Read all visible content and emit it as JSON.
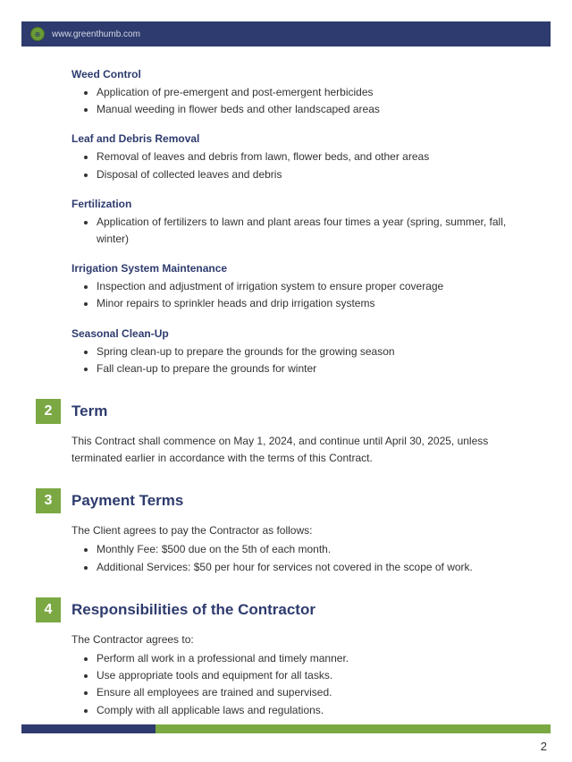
{
  "header": {
    "url": "www.greenthumb.com"
  },
  "subSections": [
    {
      "heading": "Weed Control",
      "items": [
        "Application of pre-emergent and post-emergent herbicides",
        "Manual weeding in flower beds and other landscaped areas"
      ]
    },
    {
      "heading": "Leaf and Debris Removal",
      "items": [
        "Removal of leaves and debris from lawn, flower beds, and other areas",
        "Disposal of collected leaves and debris"
      ]
    },
    {
      "heading": "Fertilization",
      "items": [
        "Application of fertilizers to lawn and plant areas four times a year (spring, summer, fall, winter)"
      ]
    },
    {
      "heading": "Irrigation System Maintenance",
      "items": [
        "Inspection and adjustment of irrigation system to ensure proper coverage",
        "Minor repairs to sprinkler heads and drip irrigation systems"
      ]
    },
    {
      "heading": "Seasonal Clean-Up",
      "items": [
        "Spring clean-up to prepare the grounds for the growing season",
        "Fall clean-up to prepare the grounds for winter"
      ]
    }
  ],
  "mainSections": [
    {
      "num": "2",
      "title": "Term",
      "intro": "This Contract shall commence on May 1, 2024, and continue until April 30, 2025, unless terminated earlier in accordance with the terms of this Contract.",
      "items": []
    },
    {
      "num": "3",
      "title": "Payment Terms",
      "intro": "The Client agrees to pay the Contractor as follows:",
      "items": [
        "Monthly Fee: $500 due on the 5th of each month.",
        "Additional Services: $50 per hour for services not covered in the scope of work."
      ]
    },
    {
      "num": "4",
      "title": "Responsibilities of the Contractor",
      "intro": "The Contractor agrees to:",
      "items": [
        "Perform all work in a professional and timely manner.",
        "Use appropriate tools and equipment for all tasks.",
        "Ensure all employees are trained and supervised.",
        "Comply with all applicable laws and regulations."
      ]
    }
  ],
  "pageNumber": "2",
  "colors": {
    "navy": "#2e3b6e",
    "green": "#7ba843",
    "text": "#333333",
    "headerText": "#d5d9e6"
  }
}
